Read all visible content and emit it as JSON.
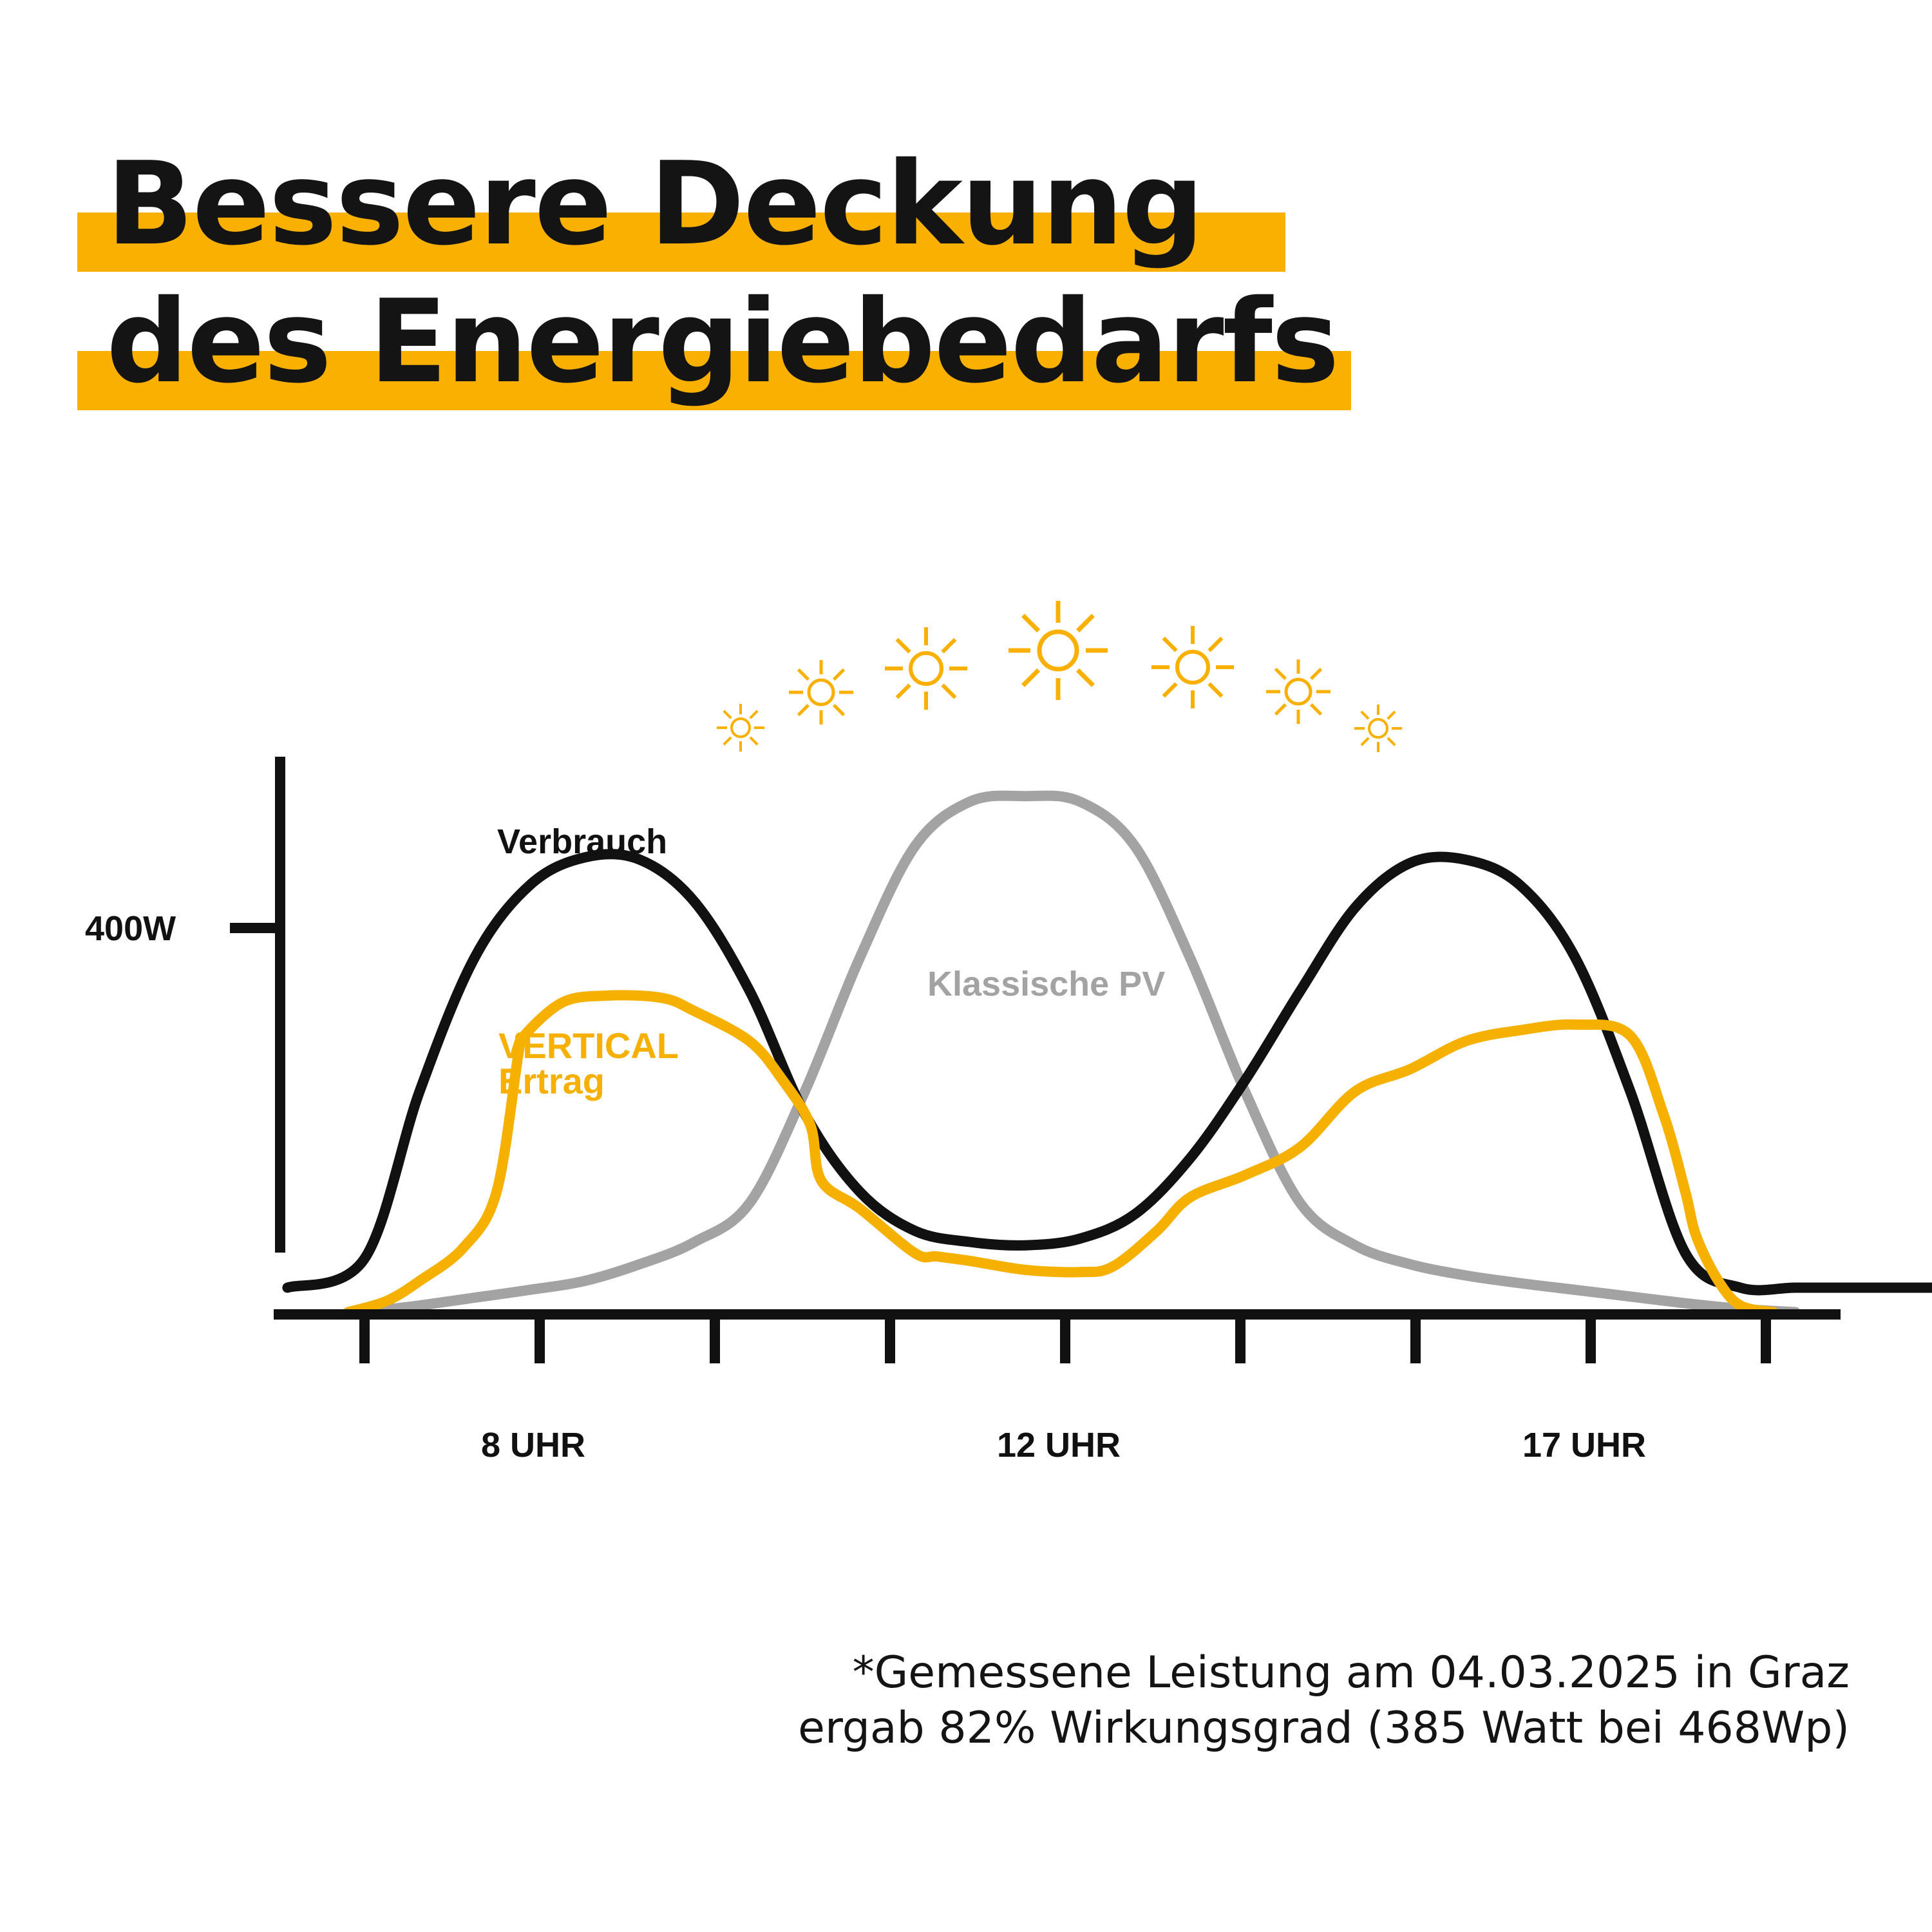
{
  "title": {
    "line1": "Bessere Deckung",
    "line2": "des Energiebedarfs"
  },
  "colors": {
    "accent": "#F9B000",
    "consumption": "#111111",
    "classic_pv": "#A3A3A3",
    "vertical": "#F5B000",
    "text": "#141414"
  },
  "chart_data": {
    "type": "line",
    "title": "",
    "xlabel": "",
    "ylabel": "",
    "x_tick_labels": [
      {
        "x": 8,
        "label": "8 UHR"
      },
      {
        "x": 12,
        "label": "12 UHR"
      },
      {
        "x": 17,
        "label": "17 UHR"
      }
    ],
    "y_tick_labels": [
      {
        "y": 400,
        "label": "400W"
      }
    ],
    "xlim": [
      6,
      19.1
    ],
    "ylim": [
      0,
      520
    ],
    "grid": false,
    "series": [
      {
        "name": "Verbrauch",
        "key": "consumption",
        "x": [
          5.3,
          6.0,
          6.5,
          7.0,
          7.5,
          8.0,
          8.5,
          9.0,
          9.5,
          10.0,
          10.5,
          11.0,
          11.5,
          12.0,
          12.5,
          13.0,
          13.5,
          14.0,
          14.5,
          15.0,
          15.5,
          16.0,
          16.5,
          17.0,
          17.5,
          18.0,
          18.5,
          19.0,
          19.5,
          20.3
        ],
        "values": [
          24,
          50,
          200,
          320,
          385,
          410,
          408,
          370,
          290,
          180,
          110,
          75,
          65,
          62,
          68,
          90,
          140,
          210,
          290,
          365,
          405,
          408,
          385,
          320,
          200,
          55,
          24,
          24,
          24,
          24
        ]
      },
      {
        "name": "Klassische PV",
        "key": "classic_pv",
        "x": [
          6.0,
          6.5,
          7.0,
          7.5,
          8.0,
          8.5,
          9.0,
          9.5,
          10.0,
          10.5,
          11.0,
          11.5,
          12.0,
          12.5,
          13.0,
          13.5,
          14.0,
          14.5,
          15.0,
          15.5,
          16.0,
          16.5,
          17.0,
          17.5,
          18.0,
          18.5,
          19.0
        ],
        "values": [
          2,
          8,
          15,
          22,
          30,
          45,
          65,
          100,
          200,
          320,
          420,
          460,
          465,
          460,
          420,
          320,
          200,
          100,
          62,
          45,
          35,
          28,
          22,
          16,
          10,
          5,
          2
        ]
      },
      {
        "name": "VERTICAL Ertrag",
        "name_line2": "Ertrag",
        "name_line1": "VERTICAL",
        "key": "vertical",
        "x": [
          5.85,
          6.2,
          6.5,
          6.9,
          7.2,
          7.4,
          7.45,
          7.8,
          8.2,
          8.7,
          9.0,
          9.5,
          9.8,
          10.05,
          10.15,
          10.5,
          11.0,
          11.2,
          11.5,
          12.0,
          12.5,
          12.8,
          13.2,
          13.5,
          14.0,
          14.5,
          15.0,
          15.5,
          16.0,
          16.5,
          17.0,
          17.5,
          17.8,
          18.0,
          18.1,
          18.3,
          18.5,
          18.8
        ],
        "values": [
          2,
          12,
          30,
          60,
          110,
          235,
          250,
          280,
          286,
          284,
          272,
          245,
          210,
          170,
          120,
          95,
          55,
          52,
          48,
          40,
          38,
          43,
          75,
          105,
          125,
          150,
          200,
          220,
          245,
          255,
          260,
          250,
          180,
          110,
          70,
          30,
          8,
          2
        ]
      }
    ],
    "annotations": [
      "Verbrauch",
      "Klassische PV"
    ]
  },
  "decoration": {
    "sun_icons": [
      {
        "name": "sun-icon",
        "size": "xs"
      },
      {
        "name": "sun-icon",
        "size": "s"
      },
      {
        "name": "sun-icon",
        "size": "m"
      },
      {
        "name": "sun-icon",
        "size": "l"
      },
      {
        "name": "sun-icon",
        "size": "m"
      },
      {
        "name": "sun-icon",
        "size": "s"
      },
      {
        "name": "sun-icon",
        "size": "xs"
      }
    ]
  },
  "footnote": {
    "line1": "*Gemessene Leistung am 04.03.2025 in Graz",
    "line2": "ergab 82% Wirkungsgrad (385 Watt bei 468Wp)"
  }
}
